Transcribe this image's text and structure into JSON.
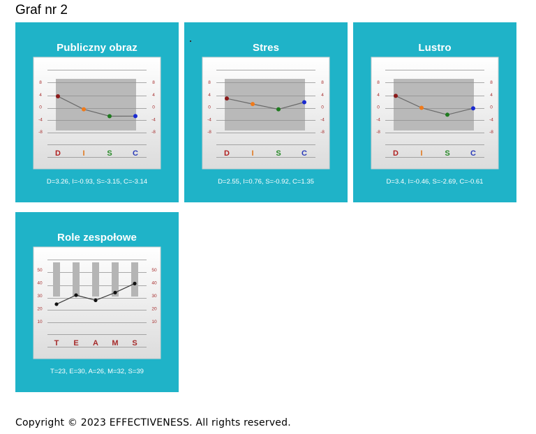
{
  "page": {
    "heading": "Graf nr 2",
    "copyright": "Copyright © 2023  EFFECTIVENESS. All rights reserved."
  },
  "colors": {
    "card_bg": "#1fb3c8",
    "D": "#8b1a1a",
    "I": "#f07a1a",
    "S": "#1f7a1f",
    "C": "#1a2ad0",
    "label_D": "#b02020",
    "label_I": "#e07820",
    "label_S": "#2a8a2a",
    "label_C": "#2a3ab8",
    "teams_label": "#a52a2a",
    "axis_tick": "#a52a2a"
  },
  "chart_data": [
    {
      "type": "line",
      "title": "Publiczny obraz",
      "categories": [
        "D",
        "I",
        "S",
        "C"
      ],
      "values": [
        3.26,
        -0.93,
        -3.15,
        -3.14
      ],
      "yticks": [
        "8",
        "4",
        "0",
        "-4",
        "-8"
      ],
      "ylim": [
        -8,
        8
      ],
      "caption": "D=3.26, I=-0.93, S=-3.15, C=-3.14"
    },
    {
      "type": "line",
      "title": "Stres",
      "categories": [
        "D",
        "I",
        "S",
        "C"
      ],
      "values": [
        2.55,
        0.76,
        -0.92,
        1.35
      ],
      "yticks": [
        "8",
        "4",
        "0",
        "-4",
        "-8"
      ],
      "ylim": [
        -8,
        8
      ],
      "caption": "D=2.55, I=0.76, S=-0.92, C=1.35"
    },
    {
      "type": "line",
      "title": "Lustro",
      "categories": [
        "D",
        "I",
        "S",
        "C"
      ],
      "values": [
        3.4,
        -0.46,
        -2.69,
        -0.61
      ],
      "yticks": [
        "8",
        "4",
        "0",
        "-4",
        "-8"
      ],
      "ylim": [
        -8,
        8
      ],
      "caption": "D=3.4, I=-0.46, S=-2.69, C=-0.61"
    },
    {
      "type": "line",
      "title": "Role zespołowe",
      "categories": [
        "T",
        "E",
        "A",
        "M",
        "S"
      ],
      "values": [
        23,
        30,
        26,
        32,
        39
      ],
      "yticks": [
        "50",
        "40",
        "30",
        "20",
        "10"
      ],
      "ylim": [
        0,
        60
      ],
      "caption": "T=23, E=30, A=26, M=32, S=39"
    }
  ]
}
